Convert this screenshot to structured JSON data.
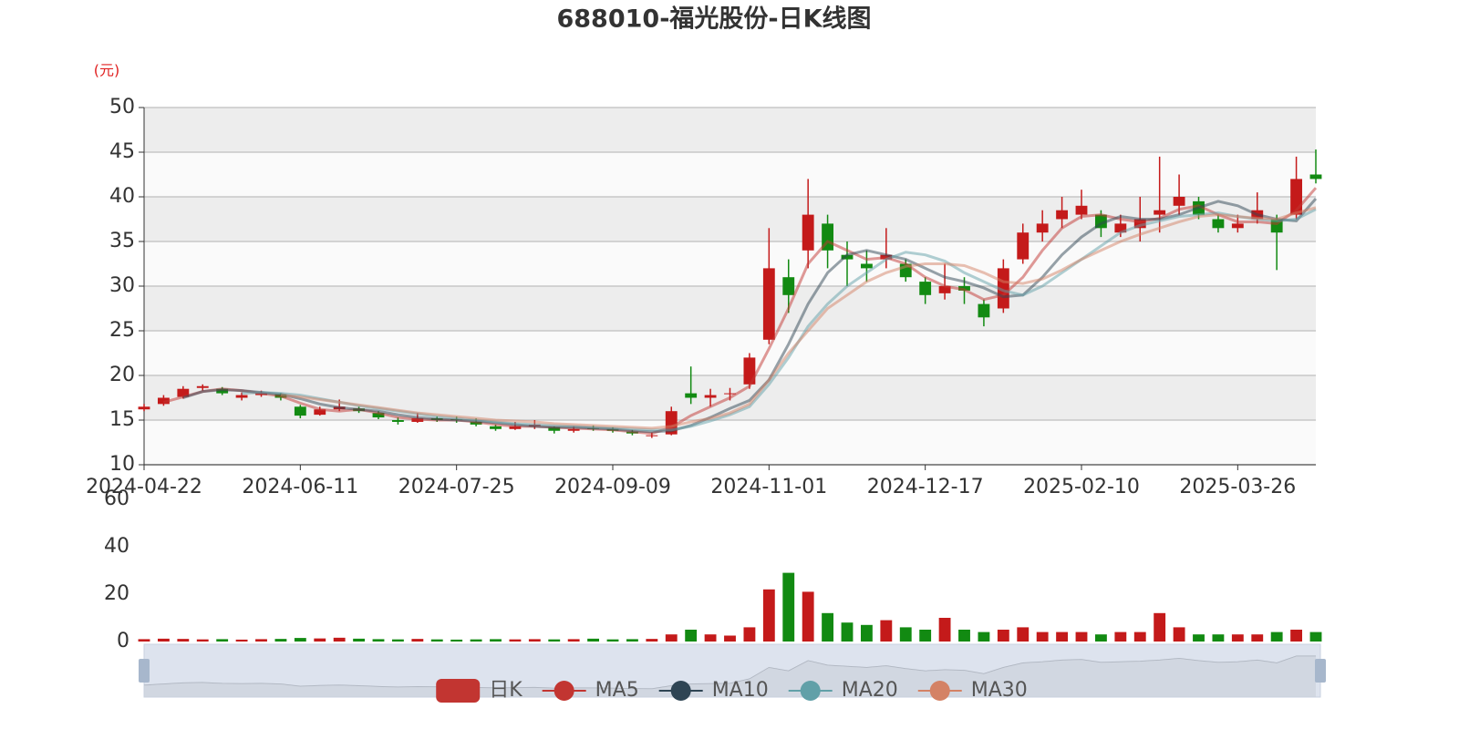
{
  "chart_data": {
    "type": "candlestick",
    "title": "688010-福光股份-日K线图",
    "y_unit_label": "(元)",
    "categories": [
      "2024-04-22",
      null,
      null,
      null,
      null,
      null,
      null,
      null,
      "2024-06-11",
      null,
      null,
      null,
      null,
      null,
      null,
      null,
      "2024-07-25",
      null,
      null,
      null,
      null,
      null,
      null,
      null,
      "2024-09-09",
      null,
      null,
      null,
      null,
      null,
      null,
      null,
      "2024-11-01",
      null,
      null,
      null,
      null,
      null,
      null,
      null,
      "2024-12-17",
      null,
      null,
      null,
      null,
      null,
      null,
      null,
      "2025-02-10",
      null,
      null,
      null,
      null,
      null,
      null,
      null,
      "2025-03-26",
      null,
      null,
      null,
      null
    ],
    "ylim": [
      10,
      50
    ],
    "yticks": [
      10,
      15,
      20,
      25,
      30,
      35,
      40,
      45,
      50
    ],
    "split_area": true,
    "grid": true,
    "legend": "bottom",
    "series": [
      {
        "name": "日K",
        "color": "#c23531",
        "up_color": "#c41a1a",
        "down_color": "#128a12",
        "values": [
          [
            16.2,
            16.5,
            16.0,
            16.8
          ],
          [
            16.8,
            17.5,
            16.6,
            17.8
          ],
          [
            17.6,
            18.5,
            17.4,
            18.8
          ],
          [
            18.6,
            18.8,
            18.3,
            19.0
          ],
          [
            18.5,
            18.0,
            17.8,
            18.7
          ],
          [
            17.5,
            17.8,
            17.2,
            18.1
          ],
          [
            17.8,
            18.0,
            17.6,
            18.3
          ],
          [
            17.9,
            17.5,
            17.2,
            18.0
          ],
          [
            16.5,
            15.5,
            15.2,
            16.7
          ],
          [
            15.6,
            16.2,
            15.5,
            16.5
          ],
          [
            16.2,
            16.5,
            16.0,
            17.3
          ],
          [
            16.3,
            16.0,
            15.8,
            16.5
          ],
          [
            15.8,
            15.3,
            15.1,
            16.0
          ],
          [
            15.0,
            14.8,
            14.5,
            15.3
          ],
          [
            14.8,
            15.2,
            14.7,
            15.8
          ],
          [
            15.2,
            15.0,
            14.8,
            15.4
          ],
          [
            15.1,
            15.0,
            14.7,
            15.4
          ],
          [
            14.8,
            14.5,
            14.3,
            15.2
          ],
          [
            14.3,
            14.0,
            13.8,
            14.5
          ],
          [
            14.0,
            14.3,
            13.9,
            14.8
          ],
          [
            14.3,
            14.5,
            14.0,
            15.0
          ],
          [
            14.2,
            13.8,
            13.5,
            14.3
          ],
          [
            13.8,
            14.0,
            13.6,
            14.3
          ],
          [
            14.1,
            14.0,
            13.8,
            14.4
          ],
          [
            14.0,
            13.8,
            13.6,
            14.2
          ],
          [
            13.7,
            13.5,
            13.3,
            13.9
          ],
          [
            13.2,
            13.3,
            13.0,
            13.6
          ],
          [
            13.4,
            16.0,
            13.3,
            16.5
          ],
          [
            18.0,
            17.5,
            16.8,
            21.0
          ],
          [
            17.5,
            17.8,
            16.5,
            18.5
          ],
          [
            17.9,
            18.0,
            17.2,
            18.6
          ],
          [
            19.0,
            22.0,
            18.5,
            22.5
          ],
          [
            24.0,
            32.0,
            23.5,
            36.5
          ],
          [
            31.0,
            29.0,
            27.0,
            33.0
          ],
          [
            34.0,
            38.0,
            32.0,
            42.0
          ],
          [
            37.0,
            34.0,
            32.0,
            38.0
          ],
          [
            33.5,
            33.0,
            30.0,
            35.0
          ],
          [
            32.5,
            32.0,
            30.5,
            34.0
          ],
          [
            33.0,
            33.5,
            32.0,
            36.5
          ],
          [
            32.5,
            31.0,
            30.5,
            33.0
          ],
          [
            30.5,
            29.0,
            28.0,
            31.0
          ],
          [
            29.2,
            30.0,
            28.5,
            32.5
          ],
          [
            30.0,
            29.5,
            28.0,
            31.0
          ],
          [
            28.0,
            26.5,
            25.5,
            28.5
          ],
          [
            27.5,
            32.0,
            27.0,
            33.0
          ],
          [
            33.0,
            36.0,
            32.5,
            37.0
          ],
          [
            36.0,
            37.0,
            35.0,
            38.5
          ],
          [
            37.5,
            38.5,
            36.5,
            40.0
          ],
          [
            38.0,
            39.0,
            37.5,
            40.8
          ],
          [
            38.0,
            36.5,
            35.5,
            38.5
          ],
          [
            36.0,
            37.0,
            35.5,
            38.0
          ],
          [
            36.5,
            37.5,
            35.0,
            40.0
          ],
          [
            38.0,
            38.5,
            36.0,
            44.5
          ],
          [
            39.0,
            40.0,
            38.0,
            42.5
          ],
          [
            39.5,
            38.0,
            37.5,
            40.0
          ],
          [
            37.5,
            36.5,
            36.0,
            38.0
          ],
          [
            36.5,
            37.0,
            36.0,
            38.0
          ],
          [
            37.5,
            38.5,
            37.0,
            40.5
          ],
          [
            37.5,
            36.0,
            31.8,
            38.0
          ],
          [
            38.0,
            42.0,
            37.5,
            44.5
          ],
          [
            42.5,
            42.0,
            41.5,
            45.3
          ]
        ]
      },
      {
        "name": "MA5",
        "color": "#c23531",
        "values": [
          null,
          17.0,
          17.6,
          18.2,
          18.5,
          18.3,
          18.0,
          17.7,
          16.9,
          16.2,
          16.0,
          16.2,
          15.8,
          15.3,
          15.1,
          15.0,
          15.0,
          14.8,
          14.5,
          14.3,
          14.3,
          14.2,
          14.1,
          14.0,
          13.9,
          13.7,
          13.5,
          14.2,
          15.5,
          16.5,
          17.5,
          18.8,
          23.0,
          27.5,
          32.5,
          35.0,
          34.0,
          33.0,
          33.2,
          32.5,
          31.0,
          30.0,
          29.6,
          28.5,
          29.0,
          31.0,
          34.0,
          36.5,
          37.8,
          38.0,
          37.5,
          37.2,
          37.6,
          38.6,
          39.0,
          38.0,
          37.2,
          37.2,
          37.0,
          38.5,
          41.0
        ]
      },
      {
        "name": "MA10",
        "color": "#2f4554",
        "values": [
          null,
          null,
          17.5,
          18.2,
          18.4,
          18.3,
          18.1,
          17.9,
          17.4,
          16.8,
          16.4,
          16.2,
          16.0,
          15.6,
          15.3,
          15.1,
          15.0,
          14.9,
          14.7,
          14.5,
          14.3,
          14.2,
          14.2,
          14.1,
          14.0,
          13.8,
          13.7,
          13.8,
          14.4,
          15.3,
          16.3,
          17.2,
          19.5,
          23.5,
          28.0,
          31.5,
          33.5,
          34.0,
          33.5,
          33.0,
          32.0,
          31.0,
          30.5,
          29.8,
          28.8,
          29.0,
          31.0,
          33.5,
          35.5,
          37.0,
          37.8,
          37.5,
          37.5,
          38.0,
          38.8,
          39.5,
          39.0,
          38.0,
          37.5,
          37.3,
          39.8
        ]
      },
      {
        "name": "MA20",
        "color": "#61a0a8",
        "values": [
          null,
          null,
          null,
          null,
          null,
          18.0,
          18.1,
          18.0,
          17.8,
          17.4,
          17.0,
          16.6,
          16.3,
          16.0,
          15.7,
          15.4,
          15.2,
          15.0,
          14.8,
          14.6,
          14.5,
          14.4,
          14.3,
          14.2,
          14.1,
          14.0,
          13.9,
          13.9,
          14.3,
          14.9,
          15.6,
          16.5,
          19.0,
          22.0,
          25.5,
          28.0,
          30.0,
          31.5,
          33.0,
          33.8,
          33.5,
          32.8,
          31.5,
          30.5,
          29.5,
          29.0,
          30.0,
          31.5,
          33.0,
          34.5,
          36.0,
          36.8,
          37.3,
          37.8,
          38.0,
          38.2,
          37.8,
          37.5,
          37.3,
          37.5,
          38.6
        ]
      },
      {
        "name": "MA30",
        "color": "#d48265",
        "values": [
          null,
          null,
          null,
          null,
          null,
          null,
          null,
          17.8,
          17.6,
          17.3,
          17.0,
          16.7,
          16.4,
          16.1,
          15.8,
          15.6,
          15.4,
          15.2,
          15.0,
          14.9,
          14.8,
          14.6,
          14.5,
          14.4,
          14.3,
          14.2,
          14.1,
          14.3,
          14.8,
          15.2,
          15.8,
          16.8,
          19.5,
          22.5,
          25.0,
          27.5,
          29.0,
          30.5,
          31.5,
          32.2,
          32.5,
          32.5,
          32.3,
          31.5,
          30.5,
          30.3,
          30.8,
          31.8,
          33.0,
          34.0,
          35.0,
          35.8,
          36.5,
          37.2,
          37.8,
          38.0,
          37.8,
          37.6,
          37.5,
          38.2,
          38.8
        ]
      }
    ],
    "volume": {
      "ylim": [
        0,
        60
      ],
      "yticks": [
        0,
        20,
        40,
        60
      ],
      "values": [
        1.0,
        1.2,
        1.1,
        0.9,
        1.0,
        0.8,
        1.0,
        1.1,
        1.5,
        1.3,
        1.6,
        1.2,
        1.0,
        0.9,
        1.1,
        0.9,
        0.8,
        0.9,
        1.0,
        0.9,
        1.0,
        0.9,
        1.0,
        1.2,
        0.9,
        1.0,
        1.1,
        3.0,
        5.0,
        3.0,
        2.5,
        6.0,
        22.0,
        29.0,
        21.0,
        12.0,
        8.0,
        7.0,
        9.0,
        6.0,
        5.0,
        10.0,
        5.0,
        4.0,
        5.0,
        6.0,
        4.0,
        4.0,
        4.0,
        3.0,
        4.0,
        4.0,
        12.0,
        6.0,
        3.0,
        3.0,
        3.0,
        3.0,
        4.0,
        5.0,
        4.0
      ]
    }
  }
}
